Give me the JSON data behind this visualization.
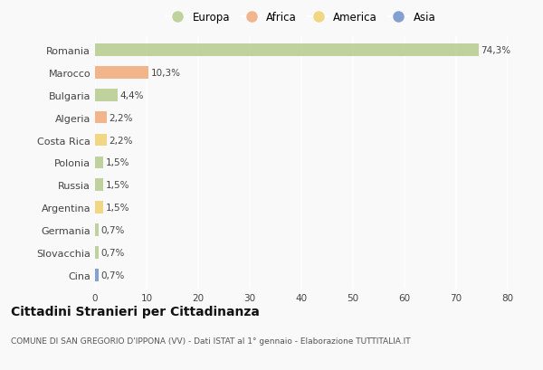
{
  "countries": [
    "Romania",
    "Marocco",
    "Bulgaria",
    "Algeria",
    "Costa Rica",
    "Polonia",
    "Russia",
    "Argentina",
    "Germania",
    "Slovacchia",
    "Cina"
  ],
  "values": [
    74.3,
    10.3,
    4.4,
    2.2,
    2.2,
    1.5,
    1.5,
    1.5,
    0.7,
    0.7,
    0.7
  ],
  "labels": [
    "74,3%",
    "10,3%",
    "4,4%",
    "2,2%",
    "2,2%",
    "1,5%",
    "1,5%",
    "1,5%",
    "0,7%",
    "0,7%",
    "0,7%"
  ],
  "continents": [
    "Europa",
    "Africa",
    "Europa",
    "Africa",
    "America",
    "Europa",
    "Europa",
    "America",
    "Europa",
    "Europa",
    "Asia"
  ],
  "colors": {
    "Europa": "#b5cc8e",
    "Africa": "#f0a878",
    "America": "#f0d070",
    "Asia": "#7090cc"
  },
  "xlim": [
    0,
    80
  ],
  "xticks": [
    0,
    10,
    20,
    30,
    40,
    50,
    60,
    70,
    80
  ],
  "title": "Cittadini Stranieri per Cittadinanza",
  "subtitle": "COMUNE DI SAN GREGORIO D'IPPONA (VV) - Dati ISTAT al 1° gennaio - Elaborazione TUTTITALIA.IT",
  "background_color": "#f9f9f9",
  "grid_color": "#e0e0e0",
  "legend_order": [
    "Europa",
    "Africa",
    "America",
    "Asia"
  ]
}
